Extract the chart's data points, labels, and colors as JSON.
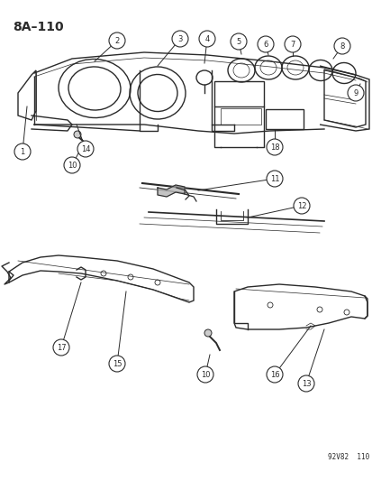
{
  "title": "8A–110",
  "watermark": "92V82  110",
  "bg_color": "#ffffff",
  "line_color": "#2a2a2a",
  "fig_width": 4.14,
  "fig_height": 5.33,
  "dpi": 100
}
